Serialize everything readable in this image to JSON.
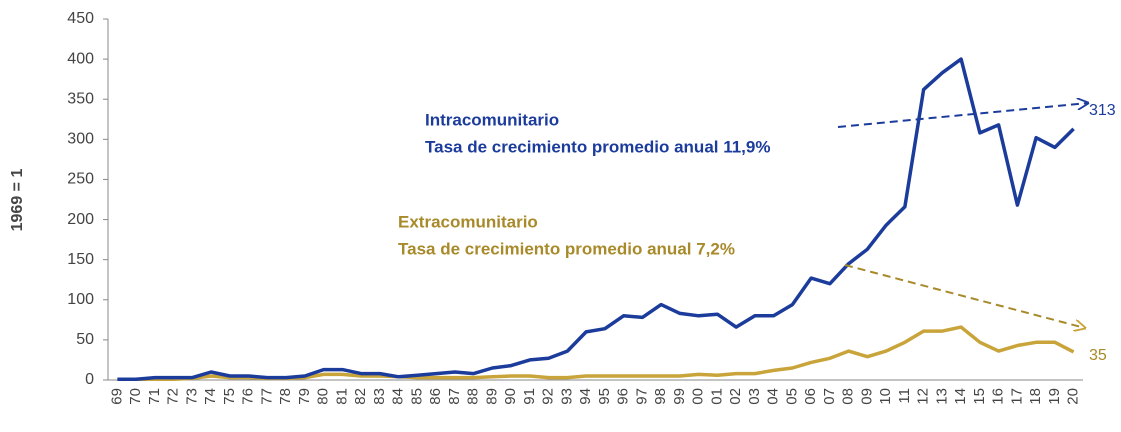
{
  "chart_data": {
    "type": "line",
    "ylabel": "1969 = 1",
    "categories": [
      "69",
      "70",
      "71",
      "72",
      "73",
      "74",
      "75",
      "76",
      "77",
      "78",
      "79",
      "80",
      "81",
      "82",
      "83",
      "84",
      "85",
      "86",
      "87",
      "88",
      "89",
      "90",
      "91",
      "92",
      "93",
      "94",
      "95",
      "96",
      "97",
      "98",
      "99",
      "00",
      "01",
      "02",
      "03",
      "04",
      "05",
      "06",
      "07",
      "08",
      "09",
      "10",
      "11",
      "12",
      "13",
      "14",
      "15",
      "16",
      "17",
      "18",
      "19",
      "20"
    ],
    "series": [
      {
        "name": "Intracomunitario",
        "color": "#1c3c9c",
        "values": [
          1,
          1,
          3,
          3,
          3,
          10,
          5,
          5,
          3,
          3,
          5,
          13,
          13,
          8,
          8,
          4,
          6,
          8,
          10,
          8,
          15,
          18,
          25,
          27,
          36,
          60,
          64,
          80,
          78,
          94,
          83,
          80,
          82,
          66,
          80,
          80,
          94,
          127,
          120,
          145,
          163,
          193,
          216,
          362,
          383,
          400,
          308,
          318,
          218,
          302,
          290,
          313
        ]
      },
      {
        "name": "Extracomunitario",
        "color": "#c9a43a",
        "values": [
          1,
          1,
          1,
          1,
          2,
          5,
          3,
          3,
          2,
          2,
          3,
          7,
          7,
          5,
          5,
          4,
          3,
          3,
          3,
          3,
          4,
          5,
          5,
          3,
          3,
          5,
          5,
          5,
          5,
          5,
          5,
          7,
          6,
          8,
          8,
          12,
          15,
          22,
          27,
          36,
          29,
          36,
          47,
          61,
          61,
          66,
          47,
          36,
          43,
          47,
          47,
          35
        ]
      }
    ],
    "annotations": [
      "Tasa de crecimiento promedio anual  11,9%",
      "Tasa de crecimiento promedio anual 7,2%"
    ],
    "ylim": [
      0,
      450
    ],
    "yticks": [
      0,
      50,
      100,
      150,
      200,
      250,
      300,
      350,
      400,
      450
    ],
    "grid": false
  }
}
